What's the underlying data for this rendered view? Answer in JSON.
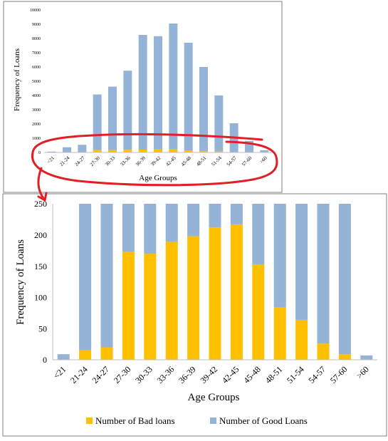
{
  "colors": {
    "good": "#95b3d7",
    "bad": "#ffc000",
    "highlight": "#e31e24",
    "axis": "#bfbfbf",
    "text": "#000000",
    "frame": "#7f7f7f"
  },
  "chart_data": [
    {
      "type": "bar",
      "stacked": true,
      "xlabel": "Age Groups",
      "ylabel": "Frequency of Loans",
      "ylim": [
        0,
        10000
      ],
      "yticks": [
        0,
        1000,
        2000,
        3000,
        4000,
        5000,
        6000,
        7000,
        8000,
        9000,
        10000
      ],
      "categories": [
        "<21",
        "21-24",
        "24-27",
        "27-30",
        "30-33",
        "33-36",
        "36-39",
        "39-42",
        "42-45",
        "45-48",
        "48-51",
        "51-54",
        "54-57",
        "57-60",
        ">60"
      ],
      "series": [
        {
          "name": "Number of Bad loans",
          "color": "#ffc000",
          "values": [
            0,
            15,
            20,
            170,
            170,
            190,
            200,
            210,
            215,
            150,
            85,
            65,
            25,
            10,
            0
          ]
        },
        {
          "name": "Number of Good Loans",
          "color": "#95b3d7",
          "values": [
            60,
            350,
            520,
            3900,
            4450,
            5550,
            8050,
            7950,
            8835,
            7550,
            5915,
            3935,
            2025,
            800,
            160
          ]
        }
      ],
      "grid": false,
      "legend": "none"
    },
    {
      "type": "bar",
      "stacked": true,
      "xlabel": "Age Groups",
      "ylabel": "Frequency of Loans",
      "ylim": [
        0,
        250
      ],
      "yticks": [
        0,
        50,
        100,
        150,
        200,
        250
      ],
      "categories": [
        "<21",
        "21-24",
        "24-27",
        "27-30",
        "30-33",
        "33-36",
        "36-39",
        "39-42",
        "42-45",
        "45-48",
        "48-51",
        "51-54",
        "54-57",
        "57-60",
        ">60"
      ],
      "series": [
        {
          "name": "Number of Bad loans",
          "color": "#ffc000",
          "values": [
            0,
            15,
            20,
            173,
            170,
            189,
            198,
            212,
            217,
            153,
            84,
            64,
            26,
            9,
            0
          ]
        },
        {
          "name": "Number of Good Loans",
          "color": "#95b3d7",
          "values": [
            9,
            235,
            230,
            77,
            80,
            61,
            52,
            38,
            33,
            97,
            166,
            186,
            224,
            241,
            7
          ]
        }
      ],
      "clipped_at_max": true,
      "grid": false,
      "legend": "bottom"
    }
  ]
}
